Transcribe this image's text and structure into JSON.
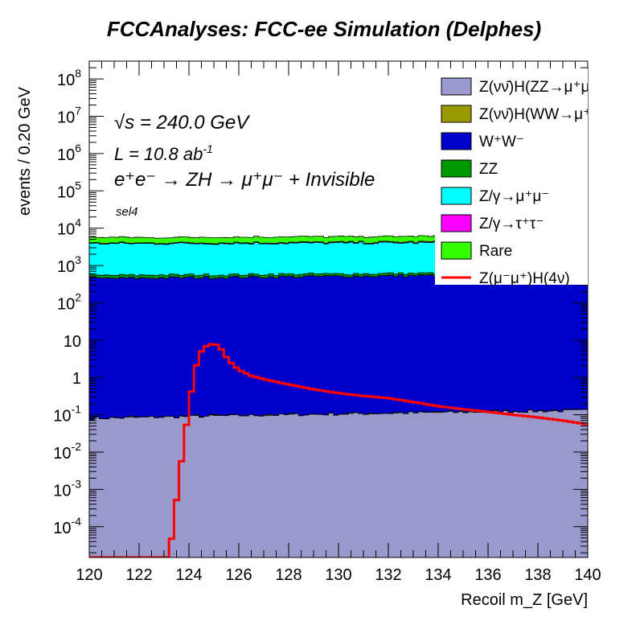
{
  "chart_data": {
    "type": "area",
    "title": "FCCAnalyses: FCC-ee Simulation (Delphes)",
    "xlabel": "Recoil m_Z [GeV]",
    "ylabel": "events / 0.20 GeV",
    "xlim": [
      120,
      140
    ],
    "ylim": [
      1.5e-05,
      300000000.0
    ],
    "y_scale": "log",
    "x_ticks": [
      "120",
      "122",
      "124",
      "126",
      "128",
      "130",
      "132",
      "134",
      "136",
      "138",
      "140"
    ],
    "y_ticks": [
      {
        "base": "10",
        "exp": "8",
        "v": 100000000.0
      },
      {
        "base": "10",
        "exp": "7",
        "v": 10000000.0
      },
      {
        "base": "10",
        "exp": "6",
        "v": 1000000.0
      },
      {
        "base": "10",
        "exp": "5",
        "v": 100000.0
      },
      {
        "base": "10",
        "exp": "4",
        "v": 10000.0
      },
      {
        "base": "10",
        "exp": "3",
        "v": 1000.0
      },
      {
        "base": "10",
        "exp": "2",
        "v": 100.0
      },
      {
        "base": "10",
        "exp": "",
        "v": 10
      },
      {
        "base": "1",
        "exp": "",
        "v": 1
      },
      {
        "base": "10",
        "exp": "-1",
        "v": 0.1
      },
      {
        "base": "10",
        "exp": "-2",
        "v": 0.01
      },
      {
        "base": "10",
        "exp": "-3",
        "v": 0.001
      },
      {
        "base": "10",
        "exp": "-4",
        "v": 0.0001
      }
    ],
    "annotations": {
      "energy_sqrt": "√s",
      "energy_value": " = 240.0 GeV",
      "lumi_prefix": "L = 10.8 ab",
      "lumi_exp": "-1",
      "process": "e⁺e⁻ → ZH → μ⁺μ⁻ + Invisible",
      "selection": "sel4"
    },
    "legend_placement": "top-right",
    "stacked_series": [
      {
        "name": "Z(νν̄)H(ZZ→μ⁺μ⁻ν⁺ν⁻)",
        "color": "#9999cc",
        "profile": "cumulative",
        "start": 0.08,
        "end": 0.13
      },
      {
        "name": "Z(νν̄)H(WW→μ⁺νμ⁻ν)",
        "color": "#999900",
        "profile": "noise",
        "min": 0.0006,
        "max": 0.006
      },
      {
        "name": "W⁺W⁻",
        "color": "#0000cc",
        "profile": "flat",
        "start": 450,
        "end": 580
      },
      {
        "name": "ZZ",
        "color": "#009900",
        "profile": "flat",
        "start": 88,
        "end": 70
      },
      {
        "name": "Z/γ→μ⁺μ⁻",
        "color": "#00ffff",
        "profile": "flat",
        "start": 3300,
        "end": 3500
      },
      {
        "name": "Z/γ→τ⁺τ⁻",
        "color": "#ff00ff",
        "profile": "flat",
        "start": 150,
        "end": 260
      },
      {
        "name": "Rare",
        "color": "#33ff00",
        "profile": "flat",
        "start": 1600,
        "end": 1800
      }
    ],
    "signal": {
      "name": "Z(μ⁻μ⁺)H(4ν)",
      "color": "#ff0000",
      "x": [
        120.0,
        123.2,
        123.4,
        123.6,
        123.8,
        124.0,
        124.2,
        124.4,
        124.6,
        124.8,
        125.0,
        125.2,
        125.4,
        125.6,
        126.0,
        126.5,
        127,
        128,
        129,
        130,
        131,
        132,
        133,
        134,
        135,
        136,
        137,
        138,
        139,
        140
      ],
      "y": [
        1.5e-05,
        1.5e-05,
        0.00015,
        0.0018,
        0.018,
        0.16,
        1.1,
        4.0,
        6.2,
        7.5,
        8.0,
        7.0,
        4.5,
        2.8,
        1.6,
        1.1,
        0.9,
        0.65,
        0.48,
        0.38,
        0.32,
        0.28,
        0.22,
        0.17,
        0.14,
        0.12,
        0.1,
        0.085,
        0.07,
        0.055
      ]
    }
  }
}
